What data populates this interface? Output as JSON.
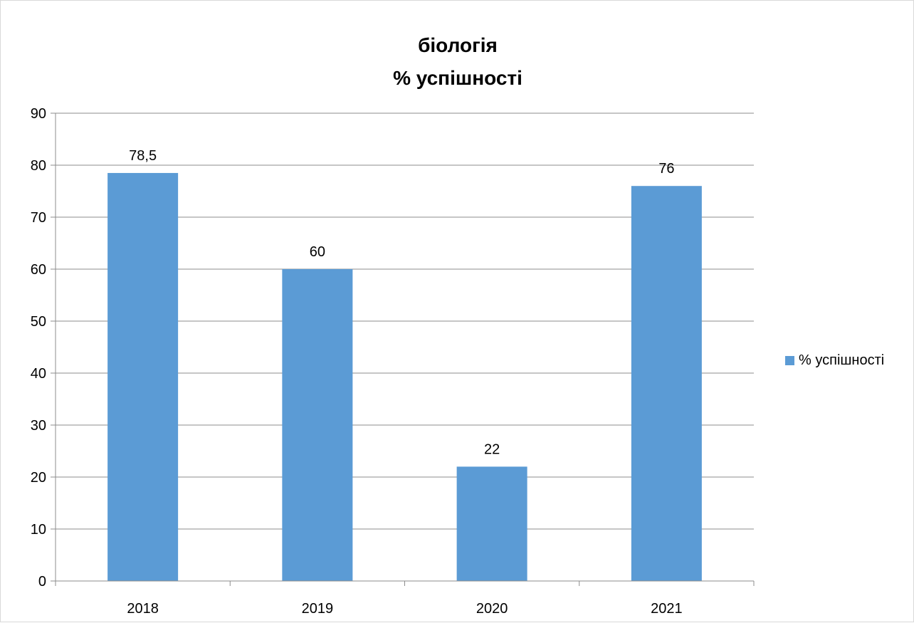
{
  "chart_data": {
    "type": "bar",
    "title": [
      "біологія",
      "% успішності"
    ],
    "categories": [
      "2018",
      "2019",
      "2020",
      "2021"
    ],
    "series": [
      {
        "name": "% успішності",
        "values": [
          78.5,
          60,
          22,
          76
        ],
        "value_labels": [
          "78,5",
          "60",
          "22",
          "76"
        ],
        "color": "#5b9bd5"
      }
    ],
    "ylim": [
      0,
      90
    ],
    "yticks": [
      0,
      10,
      20,
      30,
      40,
      50,
      60,
      70,
      80,
      90
    ],
    "grid": true,
    "legend": "right",
    "xlabel": "",
    "ylabel": ""
  }
}
